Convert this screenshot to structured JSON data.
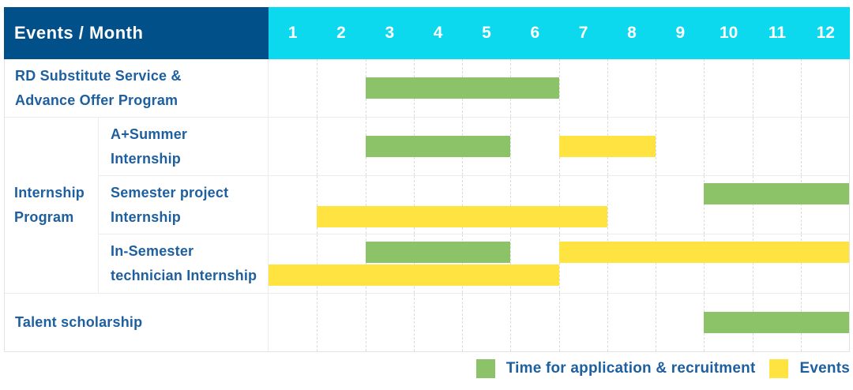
{
  "colors": {
    "header_bg": "#02508A",
    "month_header_bg": "#0CD8EE",
    "bar_green": "#8CC368",
    "bar_yellow": "#FFE340",
    "label_text": "#1D5F9F",
    "header_text": "#FFFFFF"
  },
  "chart_data": {
    "type": "gantt",
    "corner_label": "Events / Month",
    "xlabel": "Month",
    "months": [
      "1",
      "2",
      "3",
      "4",
      "5",
      "6",
      "7",
      "8",
      "9",
      "10",
      "11",
      "12"
    ],
    "legend": [
      {
        "key": "green",
        "name": "Time for application & recruitment",
        "color": "#8CC368"
      },
      {
        "key": "yellow",
        "name": "Events",
        "color": "#FFE340"
      }
    ],
    "rows": [
      {
        "kind": "row",
        "label": "RD Substitute Service & Advance Offer Program",
        "label_lines": [
          "RD Substitute Service &",
          "Advance Offer Program"
        ],
        "bars": [
          {
            "series": "green",
            "start_month": 3,
            "end_month": 6,
            "track": "single"
          }
        ]
      },
      {
        "kind": "group",
        "label": "Internship Program",
        "label_lines": [
          "Internship",
          "Program"
        ],
        "children": [
          {
            "label": "A+Summer Internship",
            "label_lines": [
              "A+Summer",
              "Internship"
            ],
            "bars": [
              {
                "series": "green",
                "start_month": 3,
                "end_month": 5,
                "track": "single"
              },
              {
                "series": "yellow",
                "start_month": 7,
                "end_month": 8,
                "track": "single"
              }
            ]
          },
          {
            "label": "Semester project Internship",
            "label_lines": [
              "Semester project",
              "Internship"
            ],
            "bars": [
              {
                "series": "green",
                "start_month": 10,
                "end_month": 12,
                "track": "top"
              },
              {
                "series": "yellow",
                "start_month": 2,
                "end_month": 7,
                "track": "bottom"
              }
            ]
          },
          {
            "label": "In-Semester technician Internship",
            "label_lines": [
              "In-Semester",
              "technician Internship"
            ],
            "bars": [
              {
                "series": "green",
                "start_month": 3,
                "end_month": 5,
                "track": "top"
              },
              {
                "series": "yellow",
                "start_month": 7,
                "end_month": 12,
                "track": "top"
              },
              {
                "series": "yellow",
                "start_month": 1,
                "end_month": 6,
                "track": "bottom"
              }
            ]
          }
        ]
      },
      {
        "kind": "row",
        "label": "Talent scholarship",
        "label_lines": [
          "Talent scholarship"
        ],
        "bars": [
          {
            "series": "green",
            "start_month": 10,
            "end_month": 12,
            "track": "single"
          }
        ]
      }
    ]
  }
}
